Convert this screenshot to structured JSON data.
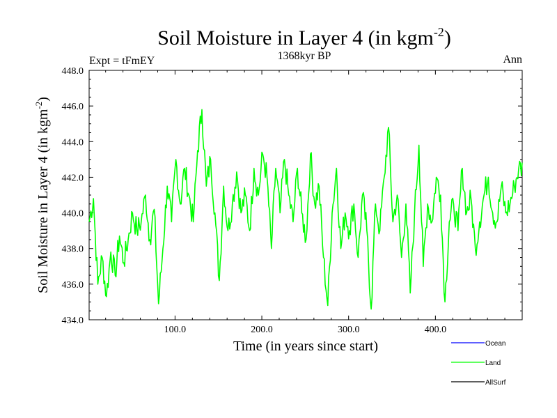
{
  "chart_data": {
    "type": "line",
    "title": "Soil Moisture in Layer 4 (in kgm",
    "title_superscript": "-2",
    "title_close": ")",
    "subtitle": "1368kyr BP",
    "left_label": "Expt = tFmEY",
    "right_label": "Ann",
    "xlabel": "Time (in years since start)",
    "ylabel": "Soil Moisture in Layer 4 (in kgm",
    "ylabel_superscript": "-2",
    "ylabel_close": ")",
    "xlim": [
      1,
      500
    ],
    "ylim": [
      434.0,
      448.0
    ],
    "xticks": [
      100,
      200,
      300,
      400
    ],
    "xtick_labels": [
      "100.0",
      "200.0",
      "300.0",
      "400.0"
    ],
    "yticks": [
      434,
      436,
      438,
      440,
      442,
      444,
      446,
      448
    ],
    "ytick_labels": [
      "434.0",
      "436.0",
      "438.0",
      "440.0",
      "442.0",
      "444.0",
      "446.0",
      "448.0"
    ],
    "legend": [
      {
        "name": "Ocean",
        "color": "#0000ff"
      },
      {
        "name": "Land",
        "color": "#00ff00"
      },
      {
        "name": "AllSurf",
        "color": "#000000"
      }
    ],
    "series": [
      {
        "name": "Land",
        "color": "#00ff00",
        "x_start": 1,
        "x_step": 5,
        "values": [
          439.5,
          440.8,
          436.0,
          437.5,
          435.3,
          437.8,
          436.5,
          438.7,
          437.2,
          438.5,
          440.0,
          439.0,
          439.5,
          441.0,
          438.5,
          440.2,
          434.9,
          438.0,
          441.5,
          439.5,
          443.0,
          440.5,
          442.5,
          441.0,
          439.5,
          443.5,
          445.8,
          441.5,
          443.0,
          440.0,
          436.2,
          441.5,
          439.0,
          440.5,
          442.3,
          440.0,
          441.0,
          439.0,
          442.5,
          441.0,
          443.3,
          442.0,
          438.0,
          442.5,
          440.0,
          443.0,
          441.0,
          439.5,
          442.5,
          440.0,
          438.5,
          443.3,
          440.5,
          441.5,
          437.5,
          434.8,
          440.0,
          442.5,
          438.0,
          440.0,
          439.0,
          440.5,
          437.5,
          441.0,
          439.0,
          434.6,
          440.5,
          439.0,
          442.0,
          444.8,
          439.5,
          441.0,
          437.5,
          440.5,
          435.5,
          440.0,
          443.8,
          437.0,
          440.5,
          439.5,
          442.0,
          441.0,
          435.0,
          439.5,
          440.5,
          439.0,
          442.5,
          440.0,
          440.8,
          438.0,
          439.5,
          441.0,
          442.0,
          440.0,
          439.5,
          441.5,
          440.0,
          440.5,
          441.5,
          442.5
        ]
      }
    ]
  }
}
